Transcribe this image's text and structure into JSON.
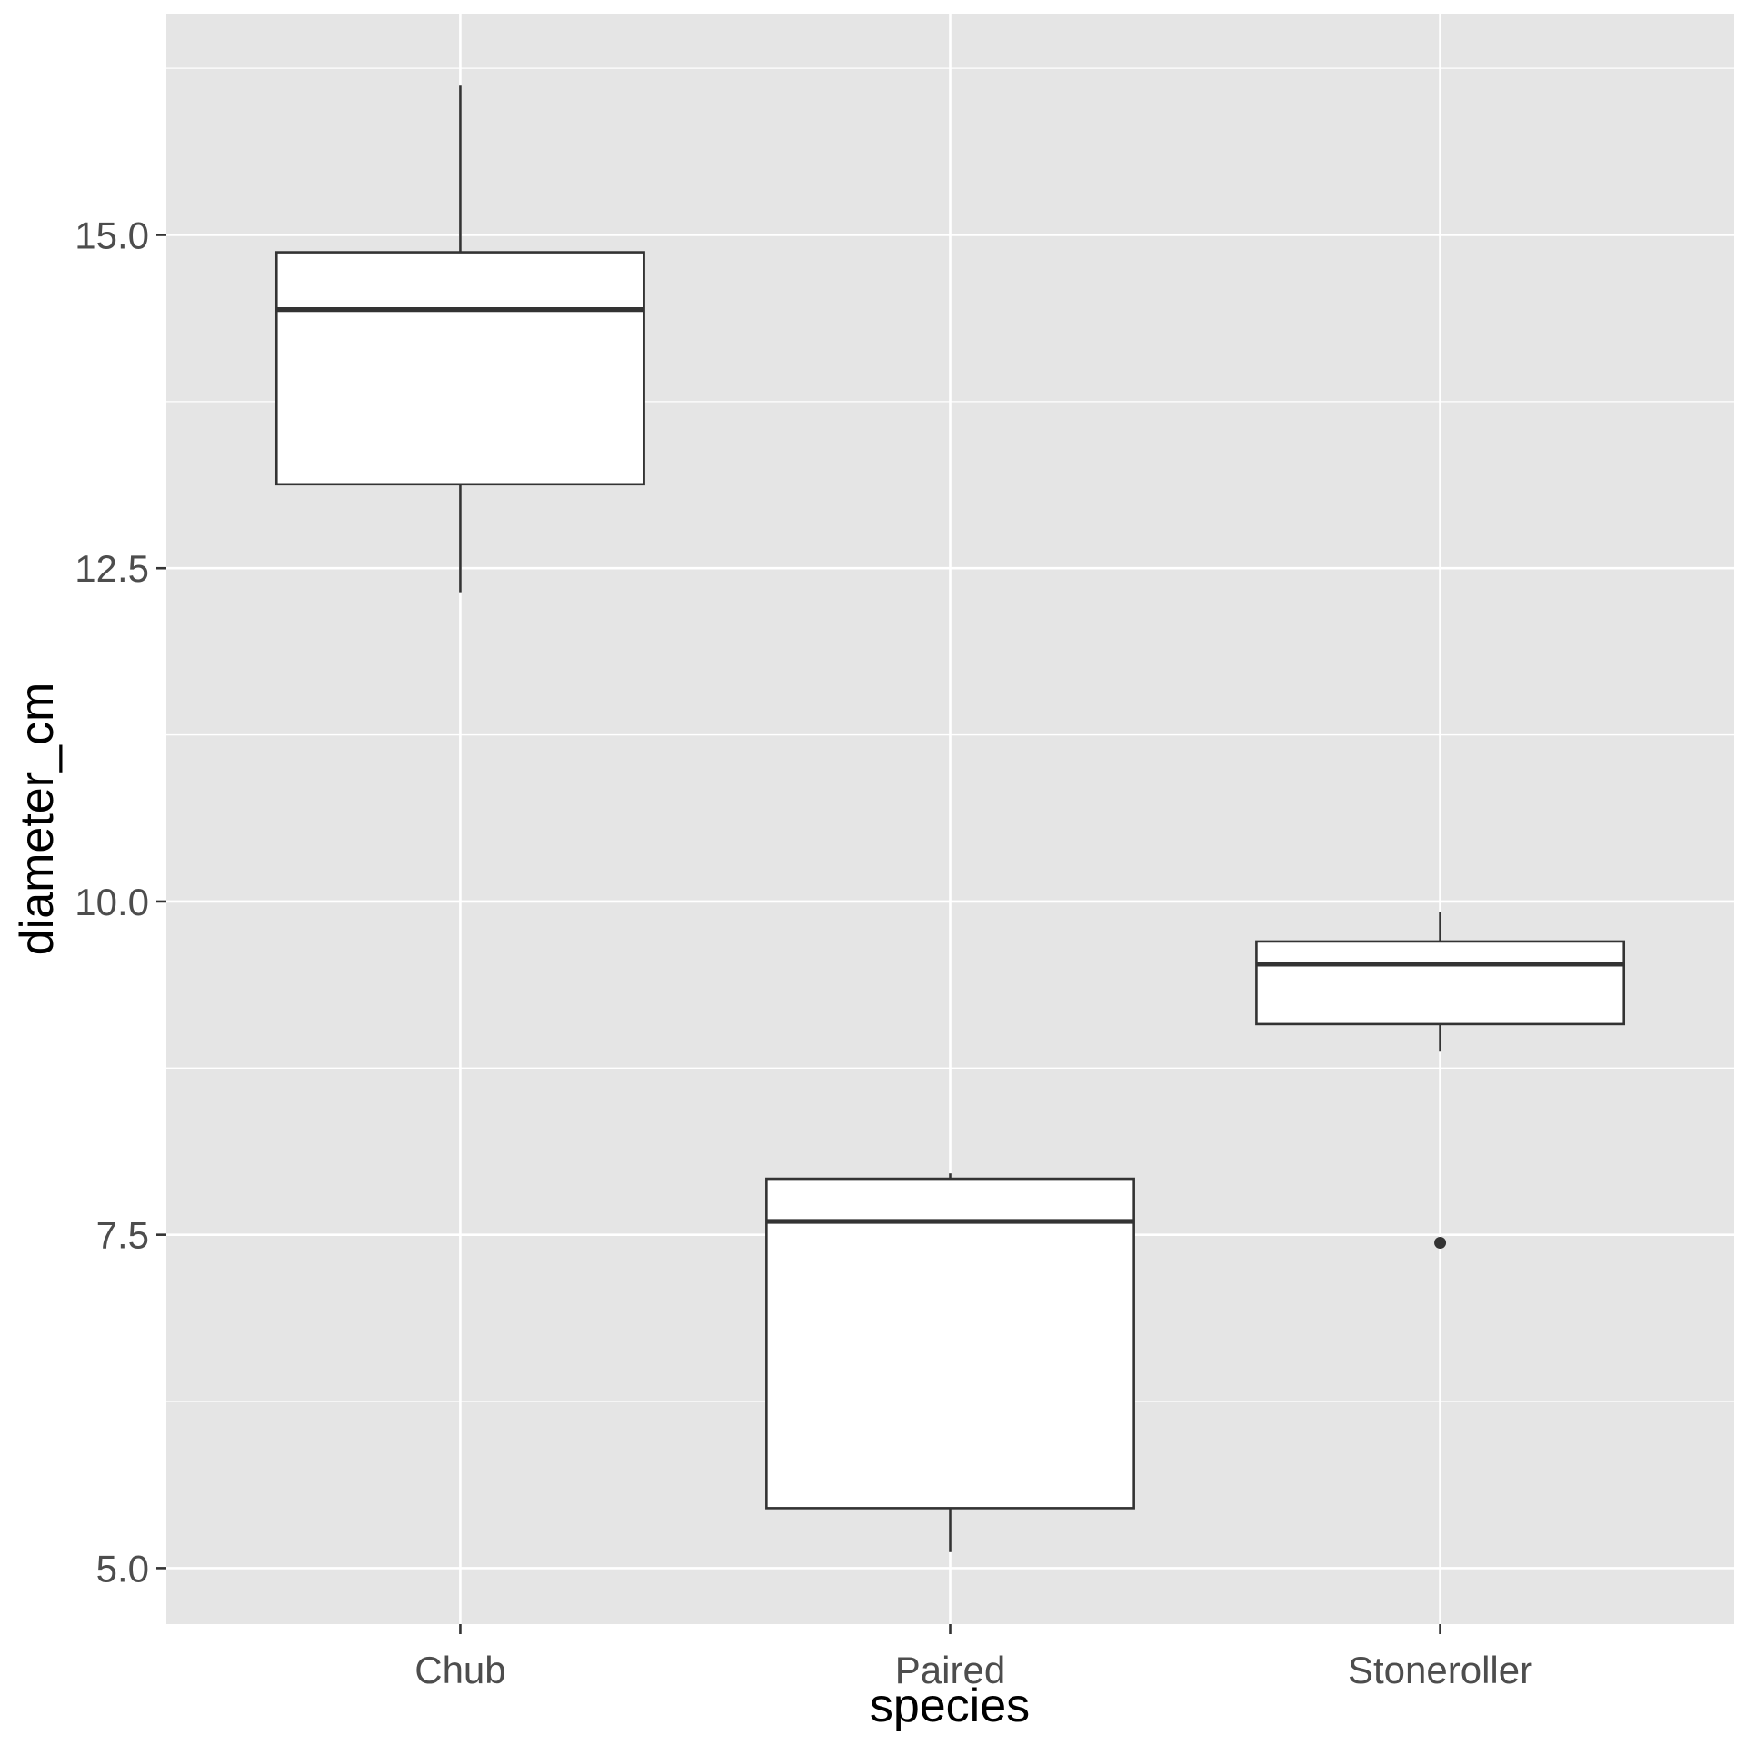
{
  "chart_data": {
    "type": "boxplot",
    "title": "",
    "xlabel": "species",
    "ylabel": "diameter_cm",
    "categories": [
      "Chub",
      "Paired",
      "Stoneroller"
    ],
    "ylim": [
      4.58,
      16.66
    ],
    "y_ticks": [
      5.0,
      7.5,
      10.0,
      12.5,
      15.0
    ],
    "y_tick_labels": [
      "5.0",
      "7.5",
      "10.0",
      "12.5",
      "15.0"
    ],
    "grid": true,
    "legend": "none",
    "boxes": [
      {
        "category": "Chub",
        "whisker_low": 12.32,
        "q1": 13.13,
        "median": 14.44,
        "q3": 14.87,
        "whisker_high": 16.12,
        "outliers": []
      },
      {
        "category": "Paired",
        "whisker_low": 5.12,
        "q1": 5.45,
        "median": 7.6,
        "q3": 7.92,
        "whisker_high": 7.96,
        "outliers": []
      },
      {
        "category": "Stoneroller",
        "whisker_low": 8.88,
        "q1": 9.08,
        "median": 9.53,
        "q3": 9.7,
        "whisker_high": 9.92,
        "outliers": [
          7.44
        ]
      }
    ],
    "colors": {
      "panel": "#e5e5e5",
      "grid": "#ffffff",
      "box_fill": "#ffffff",
      "box_stroke": "#333333"
    }
  }
}
